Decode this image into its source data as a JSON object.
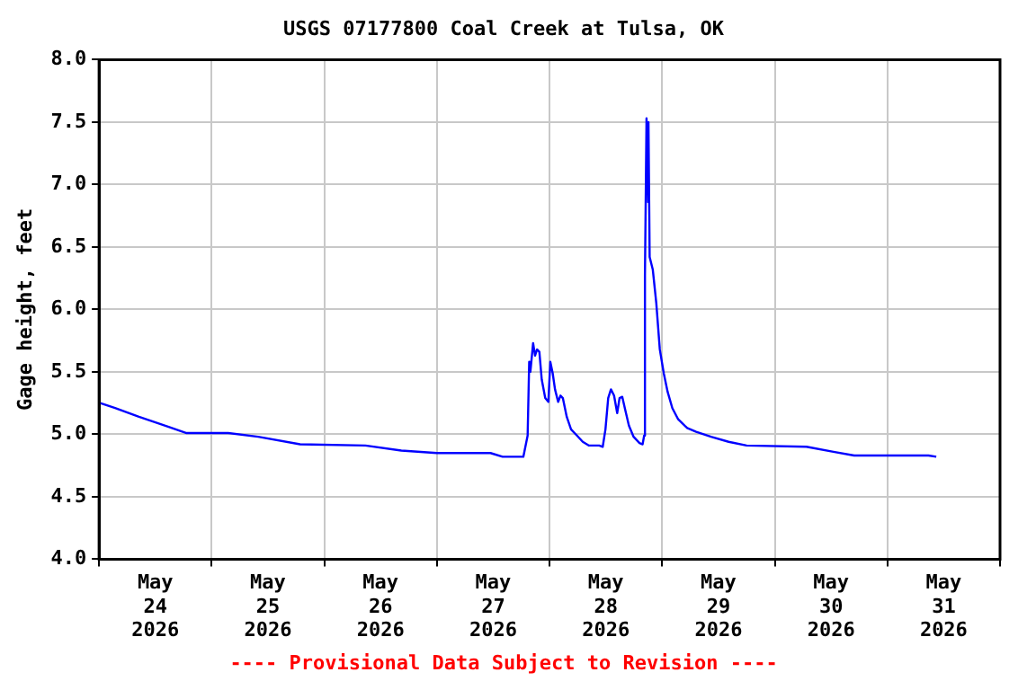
{
  "chart_data": {
    "type": "line",
    "title": "USGS 07177800 Coal Creek at Tulsa, OK",
    "ylabel": "Gage height, feet",
    "annotations": [
      "---- Provisional Data Subject to Revision ----"
    ],
    "x": [
      "2026-05-24T00:15",
      "2026-05-24T03:25",
      "2026-05-24T08:30",
      "2026-05-24T14:50",
      "2026-05-24T18:40",
      "2026-05-25T03:30",
      "2026-05-25T09:55",
      "2026-05-25T18:50",
      "2026-05-26T08:45",
      "2026-05-26T16:25",
      "2026-05-27T00:00",
      "2026-05-27T11:25",
      "2026-05-27T14:00",
      "2026-05-27T18:25",
      "2026-05-27T19:20",
      "2026-05-27T19:40",
      "2026-05-27T19:55",
      "2026-05-27T20:30",
      "2026-05-27T20:55",
      "2026-05-27T21:20",
      "2026-05-27T21:50",
      "2026-05-27T22:20",
      "2026-05-27T23:05",
      "2026-05-27T23:45",
      "2026-05-28T00:10",
      "2026-05-28T00:40",
      "2026-05-28T01:10",
      "2026-05-28T01:50",
      "2026-05-28T02:20",
      "2026-05-28T02:50",
      "2026-05-28T03:40",
      "2026-05-28T04:35",
      "2026-05-28T05:50",
      "2026-05-28T07:05",
      "2026-05-28T08:25",
      "2026-05-28T10:35",
      "2026-05-28T11:20",
      "2026-05-28T11:55",
      "2026-05-28T12:30",
      "2026-05-28T13:05",
      "2026-05-28T13:45",
      "2026-05-28T14:25",
      "2026-05-28T14:55",
      "2026-05-28T15:30",
      "2026-05-28T16:10",
      "2026-05-28T16:55",
      "2026-05-28T17:55",
      "2026-05-28T19:10",
      "2026-05-28T19:50",
      "2026-05-28T20:10",
      "2026-05-28T20:20",
      "2026-05-28T20:40",
      "2026-05-28T21:00",
      "2026-05-28T21:05",
      "2026-05-28T21:20",
      "2026-05-28T22:00",
      "2026-05-28T22:45",
      "2026-05-28T23:30",
      "2026-05-29T00:20",
      "2026-05-29T01:10",
      "2026-05-29T02:10",
      "2026-05-29T03:25",
      "2026-05-29T05:20",
      "2026-05-29T07:15",
      "2026-05-29T10:25",
      "2026-05-29T14:10",
      "2026-05-29T18:00",
      "2026-05-30T06:45",
      "2026-05-30T12:30",
      "2026-05-30T16:55",
      "2026-05-31T08:45",
      "2026-05-31T10:25"
    ],
    "series": [
      {
        "color": "#0000ff",
        "values": [
          5.25,
          5.21,
          5.14,
          5.06,
          5.01,
          5.01,
          4.98,
          4.92,
          4.91,
          4.87,
          4.85,
          4.85,
          4.82,
          4.82,
          4.99,
          5.58,
          5.5,
          5.73,
          5.63,
          5.68,
          5.66,
          5.44,
          5.29,
          5.26,
          5.58,
          5.49,
          5.36,
          5.26,
          5.31,
          5.29,
          5.14,
          5.04,
          4.99,
          4.94,
          4.91,
          4.91,
          4.9,
          5.04,
          5.29,
          5.36,
          5.31,
          5.17,
          5.29,
          5.3,
          5.19,
          5.07,
          4.98,
          4.93,
          4.92,
          4.99,
          6.27,
          7.53,
          6.86,
          7.5,
          6.42,
          6.32,
          6.05,
          5.68,
          5.49,
          5.34,
          5.21,
          5.12,
          5.05,
          5.02,
          4.98,
          4.94,
          4.91,
          4.9,
          4.86,
          4.83,
          4.83,
          4.82
        ]
      }
    ],
    "xlim": [
      "2026-05-24",
      "2026-06-01"
    ],
    "xticks": [
      {
        "value": "2026-05-24",
        "label": null
      },
      {
        "value": "2026-05-24T12:00",
        "label": "May 24 2026"
      },
      {
        "value": "2026-05-25",
        "label": null
      },
      {
        "value": "2026-05-25T12:00",
        "label": "May 25 2026"
      },
      {
        "value": "2026-05-26",
        "label": null
      },
      {
        "value": "2026-05-26T12:00",
        "label": "May 26 2026"
      },
      {
        "value": "2026-05-27",
        "label": null
      },
      {
        "value": "2026-05-27T12:00",
        "label": "May 27 2026"
      },
      {
        "value": "2026-05-28",
        "label": null
      },
      {
        "value": "2026-05-28T12:00",
        "label": "May 28 2026"
      },
      {
        "value": "2026-05-29",
        "label": null
      },
      {
        "value": "2026-05-29T12:00",
        "label": "May 29 2026"
      },
      {
        "value": "2026-05-30",
        "label": null
      },
      {
        "value": "2026-05-30T12:00",
        "label": "May 30 2026"
      },
      {
        "value": "2026-05-31",
        "label": null
      },
      {
        "value": "2026-05-31T12:00",
        "label": "May 31 2026"
      },
      {
        "value": "2026-06-01",
        "label": null
      }
    ],
    "ylim": [
      4,
      8
    ],
    "yticks": [
      {
        "value": 4,
        "label": "4.0"
      },
      {
        "value": 4.5,
        "label": "4.5"
      },
      {
        "value": 5,
        "label": "5.0"
      },
      {
        "value": 5.5,
        "label": "5.5"
      },
      {
        "value": 6,
        "label": "6.0"
      },
      {
        "value": 6.5,
        "label": "6.5"
      },
      {
        "value": 7,
        "label": "7.0"
      },
      {
        "value": 7.5,
        "label": "7.5"
      },
      {
        "value": 8,
        "label": "8.0"
      }
    ],
    "grid": true,
    "legend": false,
    "marker": "none",
    "line_style": "solid"
  }
}
